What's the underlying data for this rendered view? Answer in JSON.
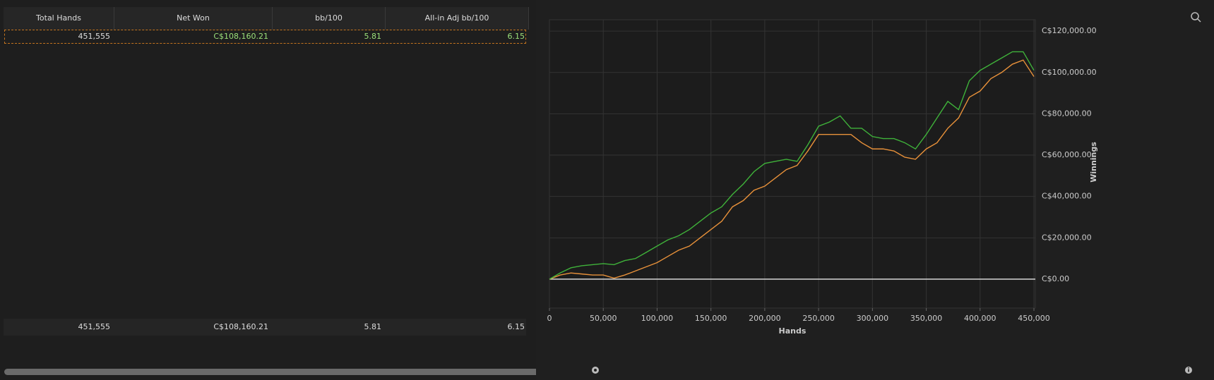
{
  "table": {
    "headers": [
      "Total Hands",
      "Net Won",
      "bb/100",
      "All-in Adj bb/100"
    ],
    "rows": [
      [
        "451,555",
        "C$108,160.21",
        "5.81",
        "6.15"
      ]
    ],
    "totals": [
      "451,555",
      "C$108,160.21",
      "5.81",
      "6.15"
    ]
  },
  "chart_data": {
    "type": "line",
    "x_label": "Hands",
    "y_label": "Winnings",
    "x": [
      0,
      10000,
      20000,
      30000,
      40000,
      50000,
      60000,
      70000,
      80000,
      90000,
      100000,
      110000,
      120000,
      130000,
      140000,
      150000,
      160000,
      170000,
      180000,
      190000,
      200000,
      210000,
      220000,
      230000,
      240000,
      250000,
      260000,
      270000,
      280000,
      290000,
      300000,
      310000,
      320000,
      330000,
      340000,
      350000,
      360000,
      370000,
      380000,
      390000,
      400000,
      410000,
      420000,
      430000,
      440000,
      450000
    ],
    "series": [
      {
        "color": "#3fb23a",
        "values": [
          0,
          3000,
          5500,
          6500,
          7000,
          7500,
          7000,
          9000,
          10000,
          13000,
          16000,
          19000,
          21000,
          24000,
          28000,
          32000,
          35000,
          41000,
          46000,
          52000,
          56000,
          57000,
          58000,
          57000,
          65000,
          74000,
          76000,
          79000,
          73000,
          73000,
          69000,
          68000,
          68000,
          66000,
          63000,
          70000,
          78000,
          86000,
          82000,
          96000,
          101000,
          104000,
          107000,
          110000,
          110000,
          101000
        ]
      },
      {
        "color": "#e8913a",
        "values": [
          0,
          2000,
          3000,
          2500,
          2000,
          2000,
          500,
          2000,
          4000,
          6000,
          8000,
          11000,
          14000,
          16000,
          20000,
          24000,
          28000,
          35000,
          38000,
          43000,
          45000,
          49000,
          53000,
          55000,
          62000,
          70000,
          70000,
          70000,
          70000,
          66000,
          63000,
          63000,
          62000,
          59000,
          58000,
          63000,
          66000,
          73000,
          78000,
          88000,
          91000,
          97000,
          100000,
          104000,
          106000,
          98000
        ]
      }
    ],
    "xlim": [
      0,
      451300
    ],
    "ylim": [
      -14000,
      125500
    ],
    "xticks": [
      0,
      {
        "value": 50000,
        "label": "50,000"
      },
      {
        "value": 100000,
        "label": "100,000"
      },
      {
        "value": 150000,
        "label": "150,000"
      },
      {
        "value": 200000,
        "label": "200,000"
      },
      {
        "value": 250000,
        "label": "250,000"
      },
      {
        "value": 300000,
        "label": "300,000"
      },
      {
        "value": 350000,
        "label": "350,000"
      },
      {
        "value": 400000,
        "label": "400,000"
      },
      {
        "value": 450000,
        "label": "450,000"
      }
    ],
    "yticks": [
      {
        "value": 0,
        "label": "C$0.00"
      },
      {
        "value": 20000,
        "label": "C$20,000.00"
      },
      {
        "value": 40000,
        "label": "C$40,000.00"
      },
      {
        "value": 60000,
        "label": "C$60,000.00"
      },
      {
        "value": 80000,
        "label": "C$80,000.00"
      },
      {
        "value": 100000,
        "label": "C$100,000.00"
      },
      {
        "value": 120000,
        "label": "C$120,000.00"
      }
    ],
    "grid": true,
    "zero_line_color": "#e6e6e6"
  }
}
